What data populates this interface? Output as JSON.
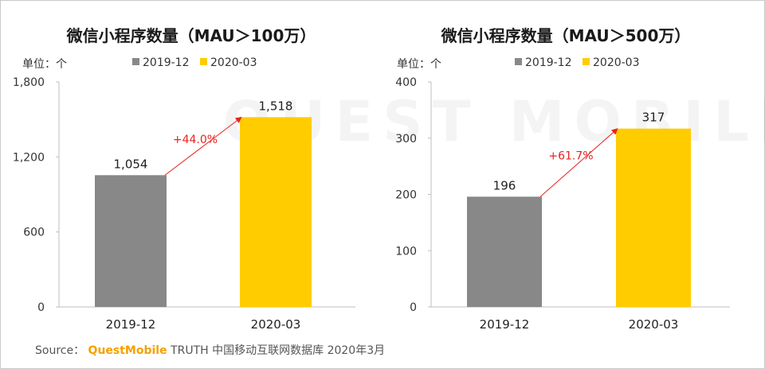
{
  "colors": {
    "series1": "#888888",
    "series2": "#ffcc00",
    "arrow": "#e8231f"
  },
  "watermark": "QUEST MOBILE",
  "chart_data": [
    {
      "type": "bar",
      "title": "微信小程序数量（MAU＞100万）",
      "unit_label": "单位：个",
      "categories": [
        "2019-12",
        "2020-03"
      ],
      "legend": [
        "2019-12",
        "2020-03"
      ],
      "values": [
        1054,
        1518
      ],
      "value_labels": [
        "1,054",
        "1,518"
      ],
      "ylim": [
        0,
        1800
      ],
      "yticks": [
        "0",
        "600",
        "1,200",
        "1,800"
      ],
      "ytick_values": [
        0,
        600,
        1200,
        1800
      ],
      "growth": "+44.0%"
    },
    {
      "type": "bar",
      "title": "微信小程序数量（MAU＞500万）",
      "unit_label": "单位：个",
      "categories": [
        "2019-12",
        "2020-03"
      ],
      "legend": [
        "2019-12",
        "2020-03"
      ],
      "values": [
        196,
        317
      ],
      "value_labels": [
        "196",
        "317"
      ],
      "ylim": [
        0,
        400
      ],
      "yticks": [
        "0",
        "100",
        "200",
        "300",
        "400"
      ],
      "ytick_values": [
        0,
        100,
        200,
        300,
        400
      ],
      "growth": "+61.7%"
    }
  ],
  "source": {
    "prefix": "Source：",
    "brand": "QuestMobile",
    "suffix": "TRUTH 中国移动互联网数据库 2020年3月"
  }
}
